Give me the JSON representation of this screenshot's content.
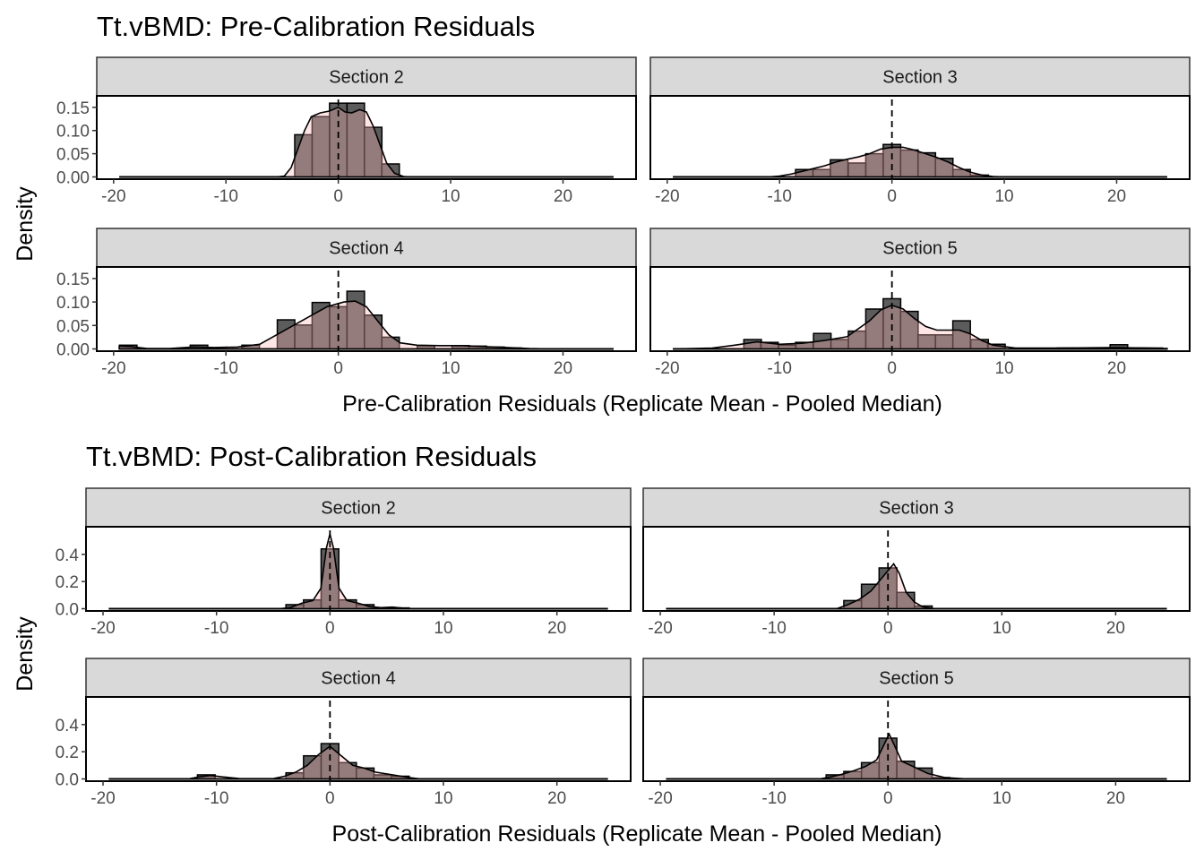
{
  "chart_data": [
    {
      "type": "bar",
      "title": "Tt.vBMD: Pre-Calibration Residuals",
      "xlabel": "Pre-Calibration Residuals (Replicate Mean - Pooled Median)",
      "ylabel": "Density",
      "xlim": [
        -21.5,
        26.5
      ],
      "xticks": [
        -20,
        -10,
        0,
        10,
        20
      ],
      "xtick_labels": [
        "-20",
        "-10",
        "0",
        "10",
        "20"
      ],
      "ylim": [
        0,
        0.168
      ],
      "yticks": [
        0,
        0.05,
        0.1,
        0.15
      ],
      "ytick_labels": [
        "0.00",
        "0.05",
        "0.10",
        "0.15"
      ],
      "reference_line": {
        "x": 0,
        "style": "dashed"
      },
      "density_range": [
        -19.5,
        24.5
      ],
      "bin_width": 1.56,
      "panels": [
        {
          "label": "Section 2",
          "bins": [
            -3.1,
            -1.55,
            0.0,
            1.55,
            3.1,
            4.65
          ],
          "values": [
            0.091,
            0.13,
            0.159,
            0.159,
            0.107,
            0.028
          ],
          "density": [
            [
              -5.5,
              0
            ],
            [
              -4.8,
              0.002
            ],
            [
              -4.2,
              0.02
            ],
            [
              -3.6,
              0.06
            ],
            [
              -3.0,
              0.1
            ],
            [
              -2.4,
              0.13
            ],
            [
              -1.6,
              0.138
            ],
            [
              -0.8,
              0.142
            ],
            [
              0,
              0.15
            ],
            [
              0.6,
              0.14
            ],
            [
              1.2,
              0.138
            ],
            [
              1.9,
              0.145
            ],
            [
              2.5,
              0.14
            ],
            [
              3.1,
              0.11
            ],
            [
              3.7,
              0.07
            ],
            [
              4.3,
              0.03
            ],
            [
              5.0,
              0.008
            ],
            [
              5.8,
              0.001
            ],
            [
              6.5,
              0
            ]
          ]
        },
        {
          "label": "Section 3",
          "bins": [
            -7.8,
            -6.25,
            -4.7,
            -3.1,
            -1.55,
            0.0,
            1.55,
            3.1,
            4.65,
            6.2,
            7.8
          ],
          "values": [
            0.016,
            0.016,
            0.037,
            0.03,
            0.05,
            0.07,
            0.058,
            0.052,
            0.04,
            0.016,
            0.004
          ],
          "density": [
            [
              -11,
              0
            ],
            [
              -10,
              0.002
            ],
            [
              -9,
              0.006
            ],
            [
              -8,
              0.012
            ],
            [
              -7,
              0.018
            ],
            [
              -6,
              0.024
            ],
            [
              -5,
              0.032
            ],
            [
              -4,
              0.038
            ],
            [
              -3,
              0.043
            ],
            [
              -2,
              0.05
            ],
            [
              -1,
              0.06
            ],
            [
              0,
              0.064
            ],
            [
              1,
              0.064
            ],
            [
              2,
              0.058
            ],
            [
              3,
              0.05
            ],
            [
              4,
              0.042
            ],
            [
              5,
              0.032
            ],
            [
              6,
              0.02
            ],
            [
              7,
              0.01
            ],
            [
              8,
              0.004
            ],
            [
              9,
              0.001
            ],
            [
              10,
              0
            ]
          ]
        },
        {
          "label": "Section 4",
          "bins": [
            -18.7,
            -12.4,
            -7.8,
            -4.65,
            -3.1,
            -1.55,
            0.0,
            1.55,
            3.1,
            4.65,
            7.8,
            10.9,
            12.4,
            14.0,
            15.5
          ],
          "values": [
            0.008,
            0.008,
            0.008,
            0.062,
            0.051,
            0.099,
            0.09,
            0.123,
            0.072,
            0.025,
            0.007,
            0.007,
            0.006,
            0.004,
            0.002
          ],
          "density": [
            [
              -19.5,
              0.006
            ],
            [
              -18.5,
              0.005
            ],
            [
              -17,
              0.001
            ],
            [
              -15,
              0.001
            ],
            [
              -13,
              0.004
            ],
            [
              -11,
              0.003
            ],
            [
              -9,
              0.004
            ],
            [
              -7,
              0.01
            ],
            [
              -5.5,
              0.03
            ],
            [
              -4,
              0.05
            ],
            [
              -2.5,
              0.07
            ],
            [
              -1,
              0.09
            ],
            [
              0.5,
              0.1
            ],
            [
              1.5,
              0.102
            ],
            [
              2.5,
              0.09
            ],
            [
              3.5,
              0.06
            ],
            [
              4.5,
              0.03
            ],
            [
              5.5,
              0.013
            ],
            [
              7,
              0.008
            ],
            [
              9,
              0.007
            ],
            [
              11,
              0.007
            ],
            [
              13,
              0.005
            ],
            [
              15,
              0.003
            ],
            [
              17,
              0.001
            ],
            [
              19,
              0
            ],
            [
              24.5,
              0
            ]
          ]
        },
        {
          "label": "Section 5",
          "bins": [
            -12.4,
            -10.9,
            -9.3,
            -7.8,
            -6.2,
            -4.65,
            -3.1,
            -1.55,
            0.0,
            1.55,
            3.1,
            4.65,
            6.2,
            7.8,
            9.3,
            15.5,
            20.2,
            21.7,
            23.3
          ],
          "values": [
            0.02,
            0.014,
            0.008,
            0.014,
            0.033,
            0.02,
            0.038,
            0.085,
            0.107,
            0.08,
            0.03,
            0.03,
            0.06,
            0.02,
            0.01,
            0.002,
            0.009,
            0.002,
            0.002
          ],
          "density": [
            [
              -19.5,
              0
            ],
            [
              -16,
              0.002
            ],
            [
              -14,
              0.008
            ],
            [
              -12,
              0.015
            ],
            [
              -10,
              0.01
            ],
            [
              -8,
              0.012
            ],
            [
              -6,
              0.018
            ],
            [
              -4,
              0.026
            ],
            [
              -2,
              0.06
            ],
            [
              -1,
              0.083
            ],
            [
              0,
              0.093
            ],
            [
              1,
              0.085
            ],
            [
              2,
              0.065
            ],
            [
              3,
              0.048
            ],
            [
              4,
              0.04
            ],
            [
              5,
              0.04
            ],
            [
              6,
              0.04
            ],
            [
              7,
              0.032
            ],
            [
              8,
              0.018
            ],
            [
              9,
              0.008
            ],
            [
              11,
              0.002
            ],
            [
              15,
              0.002
            ],
            [
              20,
              0.003
            ],
            [
              24.5,
              0.001
            ]
          ]
        }
      ]
    },
    {
      "type": "bar",
      "title": "Tt.vBMD: Post-Calibration Residuals",
      "xlabel": "Post-Calibration Residuals (Replicate Mean - Pooled Median)",
      "ylabel": "Density",
      "xlim": [
        -21.5,
        26.5
      ],
      "xticks": [
        -20,
        -10,
        0,
        10,
        20
      ],
      "xtick_labels": [
        "-20",
        "-10",
        "0",
        "10",
        "20"
      ],
      "ylim": [
        0,
        0.58
      ],
      "yticks": [
        0,
        0.2,
        0.4
      ],
      "ytick_labels": [
        "0.0",
        "0.2",
        "0.4"
      ],
      "reference_line": {
        "x": 0,
        "style": "dashed"
      },
      "density_range": [
        -19.5,
        24.5
      ],
      "bin_width": 1.56,
      "panels": [
        {
          "label": "Section 2",
          "bins": [
            -3.1,
            -1.55,
            0.0,
            1.55,
            3.1,
            4.65,
            6.2
          ],
          "values": [
            0.03,
            0.065,
            0.44,
            0.065,
            0.03,
            0.008,
            0.006
          ],
          "density": [
            [
              -4.5,
              0
            ],
            [
              -3.5,
              0.008
            ],
            [
              -2.5,
              0.04
            ],
            [
              -1.5,
              0.06
            ],
            [
              -0.8,
              0.15
            ],
            [
              -0.3,
              0.45
            ],
            [
              0,
              0.55
            ],
            [
              0.3,
              0.45
            ],
            [
              0.8,
              0.15
            ],
            [
              1.5,
              0.06
            ],
            [
              2.5,
              0.04
            ],
            [
              3.5,
              0.015
            ],
            [
              4.5,
              0.008
            ],
            [
              5.5,
              0.012
            ],
            [
              6.5,
              0.004
            ],
            [
              7.5,
              0
            ]
          ]
        },
        {
          "label": "Section 3",
          "bins": [
            -3.1,
            -1.55,
            0.0,
            1.55,
            3.1
          ],
          "values": [
            0.06,
            0.18,
            0.3,
            0.12,
            0.02
          ],
          "density": [
            [
              -4.5,
              0
            ],
            [
              -3.5,
              0.03
            ],
            [
              -2.5,
              0.07
            ],
            [
              -1.5,
              0.13
            ],
            [
              -0.5,
              0.23
            ],
            [
              0.5,
              0.33
            ],
            [
              1.0,
              0.26
            ],
            [
              1.6,
              0.12
            ],
            [
              2.3,
              0.05
            ],
            [
              3.0,
              0.015
            ],
            [
              4,
              0
            ]
          ]
        },
        {
          "label": "Section 4",
          "bins": [
            -10.9,
            -3.1,
            -1.55,
            0.0,
            1.55,
            3.1,
            4.65,
            6.2
          ],
          "values": [
            0.03,
            0.045,
            0.17,
            0.26,
            0.12,
            0.08,
            0.03,
            0.02
          ],
          "density": [
            [
              -12.5,
              0
            ],
            [
              -11.5,
              0.015
            ],
            [
              -10.5,
              0.025
            ],
            [
              -9.5,
              0.015
            ],
            [
              -8,
              0.003
            ],
            [
              -5,
              0.002
            ],
            [
              -4,
              0.02
            ],
            [
              -3,
              0.05
            ],
            [
              -2,
              0.1
            ],
            [
              -1,
              0.18
            ],
            [
              0,
              0.24
            ],
            [
              1,
              0.17
            ],
            [
              2,
              0.1
            ],
            [
              3,
              0.08
            ],
            [
              4,
              0.05
            ],
            [
              5.5,
              0.03
            ],
            [
              7,
              0.01
            ],
            [
              8,
              0
            ]
          ]
        },
        {
          "label": "Section 5",
          "bins": [
            -4.65,
            -3.1,
            -1.55,
            0.0,
            1.55,
            3.1,
            4.65
          ],
          "values": [
            0.03,
            0.055,
            0.12,
            0.3,
            0.13,
            0.08,
            0.01
          ],
          "density": [
            [
              -6,
              0
            ],
            [
              -5,
              0.015
            ],
            [
              -4,
              0.035
            ],
            [
              -3,
              0.06
            ],
            [
              -2,
              0.09
            ],
            [
              -1,
              0.14
            ],
            [
              -0.3,
              0.26
            ],
            [
              0.1,
              0.33
            ],
            [
              0.5,
              0.26
            ],
            [
              1.2,
              0.13
            ],
            [
              2.5,
              0.08
            ],
            [
              3.5,
              0.04
            ],
            [
              5,
              0.01
            ],
            [
              7,
              0
            ]
          ]
        }
      ]
    }
  ]
}
